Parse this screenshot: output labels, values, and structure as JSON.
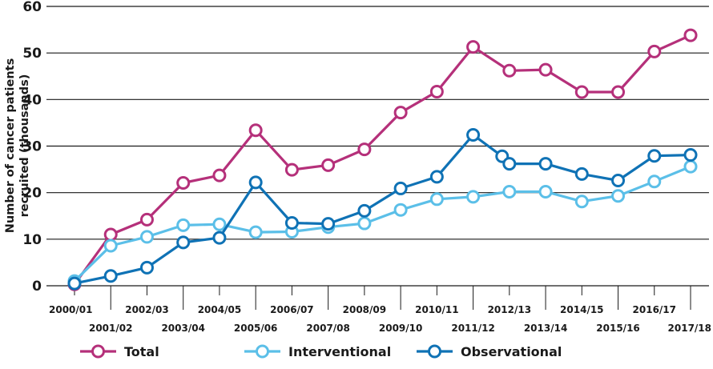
{
  "chart_data": {
    "type": "line",
    "title": "",
    "xlabel": "",
    "ylabel_lines": [
      "Number of cancer patients",
      "recruited (thousands)"
    ],
    "ylim": [
      0,
      60
    ],
    "yticks": [
      0,
      10,
      20,
      30,
      40,
      50,
      60
    ],
    "grid": "horizontal",
    "legend_position": "bottom",
    "categories": [
      "2000/01",
      "2001/02",
      "2002/03",
      "2003/04",
      "2004/05",
      "2005/06",
      "2006/07",
      "2007/08",
      "2008/09",
      "2009/10",
      "2010/11",
      "2011/12",
      "2012/13",
      "2013/14",
      "2014/15",
      "2015/16",
      "2016/17",
      "2017/18"
    ],
    "series": [
      {
        "name": "Total",
        "color": "#b5307a",
        "values": [
          0.3,
          11.0,
          14.2,
          22.1,
          23.7,
          33.4,
          24.9,
          25.9,
          29.3,
          37.2,
          41.7,
          51.3,
          46.2,
          46.4,
          41.6,
          41.6,
          50.3,
          53.8
        ]
      },
      {
        "name": "Interventional",
        "color": "#5bbfe8",
        "values": [
          1.0,
          8.6,
          10.5,
          13.0,
          13.2,
          11.5,
          11.6,
          12.6,
          13.4,
          16.3,
          18.6,
          19.1,
          20.2,
          20.2,
          18.1,
          19.3,
          22.4,
          25.6
        ]
      },
      {
        "name": "Observational",
        "color": "#0f72b5",
        "values": [
          0.5,
          2.1,
          3.9,
          9.3,
          10.3,
          22.2,
          13.5,
          13.3,
          16.1,
          20.9,
          23.4,
          32.4,
          26.2,
          26.2,
          24.0,
          22.6,
          27.9,
          28.1
        ],
        "extra_points": [
          {
            "x": "2011/12",
            "offset": 0.8,
            "value": 27.8
          }
        ]
      }
    ]
  }
}
